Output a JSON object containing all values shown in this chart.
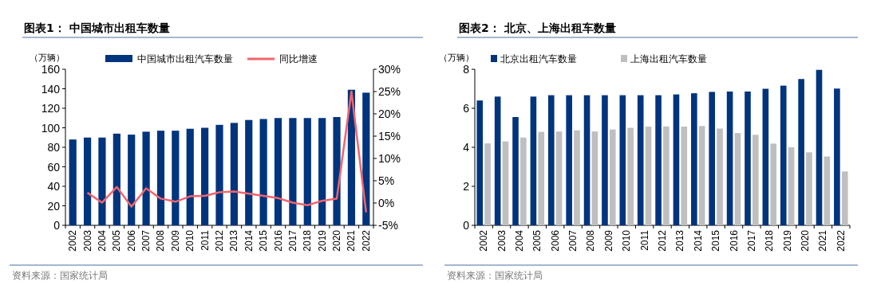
{
  "chart_data": [
    {
      "type": "bar",
      "title": "图表1： 中国城市出租车数量",
      "ylabel": "（万辆）",
      "legend": "top",
      "categories": [
        "2002",
        "2003",
        "2004",
        "2005",
        "2006",
        "2007",
        "2008",
        "2009",
        "2010",
        "2011",
        "2012",
        "2013",
        "2014",
        "2015",
        "2016",
        "2017",
        "2018",
        "2019",
        "2020",
        "2021",
        "2022"
      ],
      "series": [
        {
          "name": "中国城市出租汽车数量",
          "color": "#00347c",
          "values": [
            88,
            90,
            90,
            94,
            93,
            96,
            97,
            97,
            99,
            100,
            103,
            105,
            108,
            109,
            110,
            110,
            110,
            110,
            111,
            139,
            136
          ]
        },
        {
          "name": "同比增速",
          "type": "line",
          "axis": "y2",
          "color": "#f0646e",
          "values": [
            null,
            2.3,
            0.1,
            3.6,
            -0.8,
            3.3,
            1.0,
            0.3,
            1.5,
            1.6,
            2.4,
            2.6,
            2.1,
            1.6,
            1.1,
            0.1,
            -0.5,
            0.5,
            1.0,
            25.0,
            -2.1
          ]
        }
      ],
      "ylim": [
        0,
        160
      ],
      "yticks": [
        0,
        20,
        40,
        60,
        80,
        100,
        120,
        140,
        160
      ],
      "y2lim": [
        -5,
        30
      ],
      "y2ticks": [
        {
          "value": -5,
          "label": "-5%"
        },
        {
          "value": 0,
          "label": "0%"
        },
        {
          "value": 5,
          "label": "5%"
        },
        {
          "value": 10,
          "label": "10%"
        },
        {
          "value": 15,
          "label": "15%"
        },
        {
          "value": 20,
          "label": "20%"
        },
        {
          "value": 25,
          "label": "25%"
        },
        {
          "value": 30,
          "label": "30%"
        }
      ],
      "annotations": [
        "资料来源：国家统计局"
      ]
    },
    {
      "type": "bar",
      "title": "图表2： 北京、上海出租车数量",
      "ylabel": "（万辆）",
      "legend": "top",
      "categories": [
        "2002",
        "2003",
        "2004",
        "2005",
        "2006",
        "2007",
        "2008",
        "2009",
        "2010",
        "2011",
        "2012",
        "2013",
        "2014",
        "2015",
        "2016",
        "2017",
        "2018",
        "2019",
        "2020",
        "2021",
        "2022"
      ],
      "series": [
        {
          "name": "北京出租汽车数量",
          "color": "#00347c",
          "values": [
            6.4,
            6.6,
            5.55,
            6.6,
            6.67,
            6.67,
            6.67,
            6.67,
            6.67,
            6.67,
            6.67,
            6.71,
            6.77,
            6.84,
            6.86,
            6.86,
            7.0,
            7.16,
            7.5,
            7.97,
            7.01
          ]
        },
        {
          "name": "上海出租汽车数量",
          "color": "#bfbfbf",
          "values": [
            4.2,
            4.3,
            4.5,
            4.79,
            4.81,
            4.87,
            4.81,
            4.91,
            5.0,
            5.06,
            5.07,
            5.06,
            5.09,
            4.96,
            4.73,
            4.64,
            4.19,
            4.0,
            3.74,
            3.53,
            2.76
          ]
        }
      ],
      "ylim": [
        0,
        8
      ],
      "yticks": [
        0,
        2,
        4,
        6,
        8
      ],
      "annotations": [
        "资料来源：国家统计局"
      ]
    }
  ]
}
